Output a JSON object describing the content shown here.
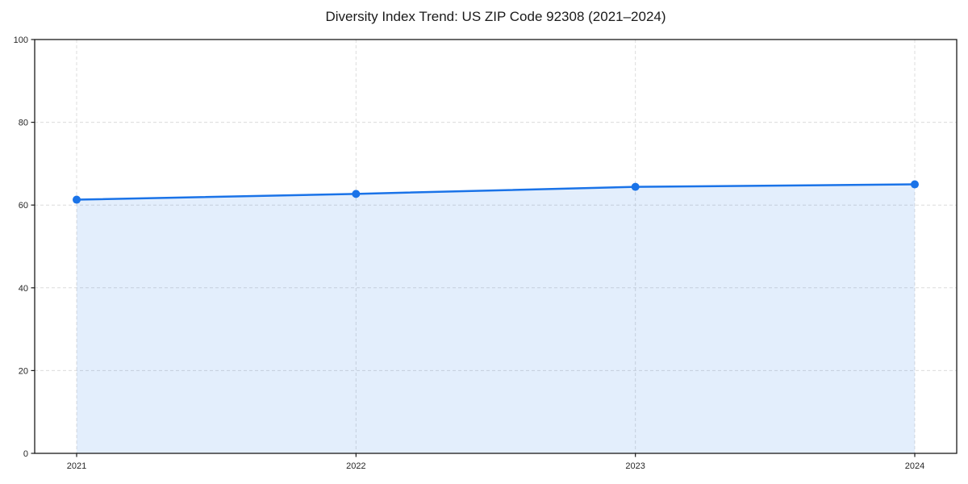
{
  "chart_data": {
    "type": "area",
    "title": "Diversity Index Trend: US ZIP Code 92308 (2021–2024)",
    "xlabel": "",
    "ylabel": "",
    "x": [
      "2021",
      "2022",
      "2023",
      "2024"
    ],
    "series": [
      {
        "name": "Diversity Index",
        "values": [
          61.3,
          62.7,
          64.4,
          65.0
        ]
      }
    ],
    "points": [
      {
        "year": "2021",
        "value": 61.3
      },
      {
        "year": "2022",
        "value": 62.7
      },
      {
        "year": "2023",
        "value": 64.4
      },
      {
        "year": "2024",
        "value": 65.0
      }
    ],
    "ylim": [
      0,
      100
    ],
    "yticks": [
      "0",
      "20",
      "40",
      "60",
      "80",
      "100"
    ],
    "xticks": [
      "2021",
      "2022",
      "2023",
      "2024"
    ],
    "grid": "dashed, both axes, axisbelow",
    "legend": "none",
    "frame": "full box",
    "colors": {
      "line": "#1a73e8",
      "fill": "rgba(26,115,232,0.12)",
      "grid": "#dcdcdc",
      "spine": "#1a1a1a",
      "tick_text": "#262626",
      "background": "#ffffff"
    }
  }
}
